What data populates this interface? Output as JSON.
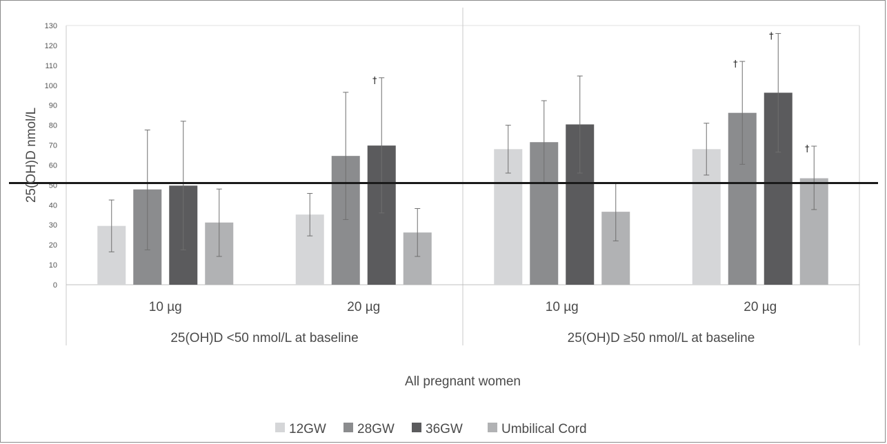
{
  "chart_data": {
    "type": "bar",
    "ylabel": "25(OH)D  nmol/L",
    "ylim": [
      0,
      130
    ],
    "ytick_step": 10,
    "grid": false,
    "reference_line": 51,
    "categories": [
      {
        "label": "10 µg",
        "group": 0
      },
      {
        "label": "20 µg",
        "group": 0
      },
      {
        "label": "10 µg",
        "group": 1
      },
      {
        "label": "20 µg",
        "group": 1
      }
    ],
    "groups": [
      "25(OH)D <50 nmol/L at baseline",
      "25(OH)D ≥50 nmol/L at baseline"
    ],
    "outer_label": "All pregnant women",
    "series": [
      {
        "name": "12GW",
        "color": "#d5d6d8",
        "values": [
          29.5,
          35.2,
          68,
          68
        ],
        "err_low": [
          16.5,
          24.5,
          56,
          55
        ],
        "err_high": [
          42.5,
          45.8,
          80,
          81
        ],
        "marker": [
          "",
          "",
          "",
          ""
        ]
      },
      {
        "name": "28GW",
        "color": "#8b8c8e",
        "values": [
          47.8,
          64.6,
          71.5,
          86.2
        ],
        "err_low": [
          17.5,
          32.7,
          51,
          60.4
        ],
        "err_high": [
          77.6,
          96.5,
          92.3,
          112
        ],
        "marker": [
          "",
          "",
          "",
          "†"
        ]
      },
      {
        "name": "36GW",
        "color": "#5b5b5d",
        "values": [
          49.7,
          69.8,
          80.4,
          96.3
        ],
        "err_low": [
          17.5,
          36,
          56,
          66.5
        ],
        "err_high": [
          82,
          103.8,
          104.7,
          126
        ],
        "marker": [
          "",
          "†",
          "",
          "†"
        ]
      },
      {
        "name": "Umbilical Cord",
        "color": "#b1b2b4",
        "values": [
          31.2,
          26.2,
          36.6,
          53.4
        ],
        "err_low": [
          14.2,
          14.2,
          22,
          37.7
        ],
        "err_high": [
          48,
          38.2,
          51.2,
          69.5
        ],
        "marker": [
          "",
          "",
          "",
          "†"
        ]
      }
    ],
    "legend_position": "bottom-center"
  }
}
